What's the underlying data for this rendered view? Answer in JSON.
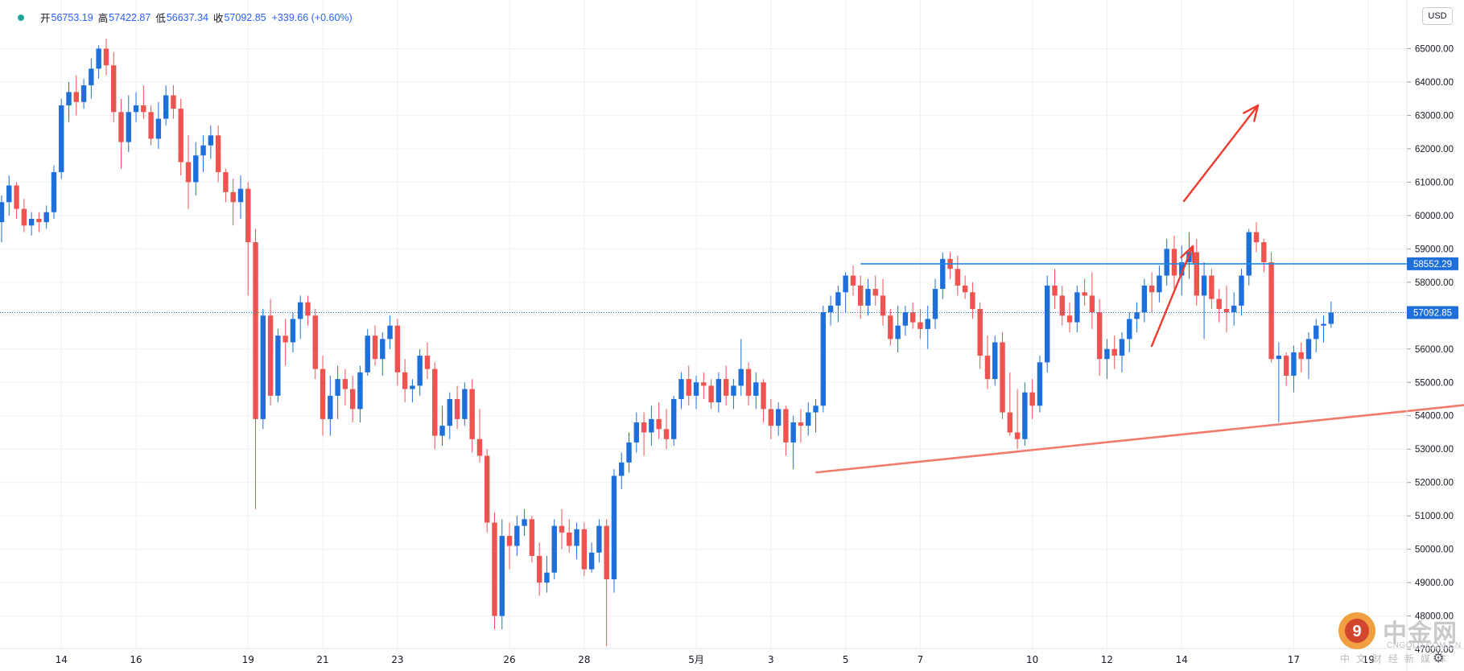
{
  "legend": {
    "open_label": "开",
    "open": "56753.19",
    "high_label": "高",
    "high": "57422.87",
    "low_label": "低",
    "low": "56637.34",
    "close_label": "收",
    "close": "57092.85",
    "change": "+339.66 (+0.60%)"
  },
  "currency": "USD",
  "price_tags": {
    "resistance": "58552.29",
    "last": "57092.85"
  },
  "watermark": {
    "name": "中金网",
    "url": "CNGOLD.COM.CN",
    "sub": "中文财经新媒体"
  },
  "colors": {
    "up": "#1e6fd9",
    "down": "#ef5350",
    "resistance_line": "#1e88e5",
    "support_line": "#f07a6c",
    "arrow": "#ef3b2e",
    "grid": "#eef0f3"
  },
  "chart_data": {
    "type": "candlestick",
    "title": "",
    "xlabel": "",
    "ylabel": "",
    "ylim": [
      46500,
      65500
    ],
    "y_ticks": [
      "65000.00",
      "64000.00",
      "63000.00",
      "62000.00",
      "61000.00",
      "60000.00",
      "59000.00",
      "58000.00",
      "57000.00",
      "56000.00",
      "55000.00",
      "54000.00",
      "53000.00",
      "52000.00",
      "51000.00",
      "50000.00",
      "49000.00",
      "48000.00",
      "47000.00"
    ],
    "x_ticks": [
      {
        "label": "14",
        "index": 8
      },
      {
        "label": "16",
        "index": 18
      },
      {
        "label": "19",
        "index": 33
      },
      {
        "label": "21",
        "index": 43
      },
      {
        "label": "23",
        "index": 53
      },
      {
        "label": "26",
        "index": 68
      },
      {
        "label": "28",
        "index": 78
      },
      {
        "label": "5月",
        "index": 93
      },
      {
        "label": "3",
        "index": 103
      },
      {
        "label": "5",
        "index": 113
      },
      {
        "label": "7",
        "index": 123
      },
      {
        "label": "10",
        "index": 138
      },
      {
        "label": "12",
        "index": 148
      },
      {
        "label": "14",
        "index": 158
      },
      {
        "label": "17",
        "index": 173
      },
      {
        "label": "19",
        "index": 183
      }
    ],
    "x_unit_note": "4-hour candles",
    "candles": [
      [
        59800,
        60600,
        59200,
        60400
      ],
      [
        60400,
        61200,
        60000,
        60900
      ],
      [
        60900,
        61000,
        59900,
        60200
      ],
      [
        60200,
        60500,
        59500,
        59700
      ],
      [
        59700,
        60100,
        59400,
        59900
      ],
      [
        59900,
        60100,
        59500,
        59800
      ],
      [
        59800,
        60300,
        59600,
        60100
      ],
      [
        60100,
        61500,
        59900,
        61300
      ],
      [
        61300,
        63500,
        61100,
        63300
      ],
      [
        63300,
        64000,
        62800,
        63700
      ],
      [
        63700,
        64200,
        63000,
        63400
      ],
      [
        63400,
        64100,
        63200,
        63900
      ],
      [
        63900,
        64700,
        63500,
        64400
      ],
      [
        64400,
        65100,
        64100,
        65000
      ],
      [
        65000,
        65300,
        64200,
        64500
      ],
      [
        64500,
        64900,
        62800,
        63100
      ],
      [
        63100,
        63500,
        61400,
        62200
      ],
      [
        62200,
        63600,
        61900,
        63100
      ],
      [
        63100,
        63700,
        62800,
        63300
      ],
      [
        63300,
        63900,
        62900,
        63100
      ],
      [
        63100,
        63300,
        62100,
        62300
      ],
      [
        62300,
        63400,
        62000,
        62900
      ],
      [
        62900,
        63900,
        62700,
        63600
      ],
      [
        63600,
        63900,
        62900,
        63200
      ],
      [
        63200,
        63500,
        61200,
        61600
      ],
      [
        61600,
        62400,
        60200,
        61000
      ],
      [
        61000,
        62200,
        60600,
        61800
      ],
      [
        61800,
        62400,
        61300,
        62100
      ],
      [
        62100,
        62700,
        61700,
        62400
      ],
      [
        62400,
        62700,
        61000,
        61300
      ],
      [
        61300,
        61400,
        60400,
        60700
      ],
      [
        60700,
        61100,
        59700,
        60400
      ],
      [
        60400,
        61200,
        59900,
        60800
      ],
      [
        60800,
        61000,
        57600,
        59200
      ],
      [
        59200,
        59600,
        51200,
        53900
      ],
      [
        53900,
        57200,
        53600,
        57000
      ],
      [
        57000,
        57500,
        54300,
        54600
      ],
      [
        54600,
        56600,
        54400,
        56400
      ],
      [
        56400,
        56900,
        55500,
        56200
      ],
      [
        56200,
        57100,
        55900,
        56900
      ],
      [
        56900,
        57600,
        56300,
        57400
      ],
      [
        57400,
        57600,
        56700,
        57000
      ],
      [
        57000,
        57200,
        55100,
        55400
      ],
      [
        55400,
        55800,
        53400,
        53900
      ],
      [
        53900,
        55200,
        53400,
        54600
      ],
      [
        54600,
        55500,
        53900,
        55100
      ],
      [
        55100,
        55400,
        54300,
        54800
      ],
      [
        54800,
        55200,
        53800,
        54200
      ],
      [
        54200,
        55500,
        53800,
        55300
      ],
      [
        55300,
        56600,
        55200,
        56400
      ],
      [
        56400,
        56700,
        55500,
        55700
      ],
      [
        55700,
        56500,
        55200,
        56300
      ],
      [
        56300,
        57000,
        56000,
        56700
      ],
      [
        56700,
        56900,
        54900,
        55300
      ],
      [
        55300,
        55700,
        54400,
        54800
      ],
      [
        54800,
        55100,
        54400,
        54900
      ],
      [
        54900,
        56000,
        54600,
        55800
      ],
      [
        55800,
        56200,
        55100,
        55400
      ],
      [
        55400,
        55600,
        53000,
        53400
      ],
      [
        53400,
        54300,
        53100,
        53700
      ],
      [
        53700,
        54700,
        53300,
        54500
      ],
      [
        54500,
        54900,
        53600,
        53900
      ],
      [
        53900,
        55000,
        53700,
        54800
      ],
      [
        54800,
        55100,
        52900,
        53300
      ],
      [
        53300,
        54200,
        52600,
        52800
      ],
      [
        52800,
        53000,
        50500,
        50800
      ],
      [
        50800,
        51100,
        47600,
        48000
      ],
      [
        48000,
        50900,
        47600,
        50400
      ],
      [
        50400,
        50800,
        49400,
        50100
      ],
      [
        50100,
        51000,
        49800,
        50700
      ],
      [
        50700,
        51200,
        50400,
        50900
      ],
      [
        50900,
        51000,
        49600,
        49800
      ],
      [
        49800,
        50200,
        48600,
        49000
      ],
      [
        49000,
        49800,
        48700,
        49300
      ],
      [
        49300,
        50900,
        49100,
        50700
      ],
      [
        50700,
        51200,
        50000,
        50500
      ],
      [
        50500,
        50900,
        49900,
        50100
      ],
      [
        50100,
        50800,
        49700,
        50600
      ],
      [
        50600,
        50800,
        49200,
        49400
      ],
      [
        49400,
        50200,
        49300,
        49900
      ],
      [
        49900,
        50900,
        49600,
        50700
      ],
      [
        50700,
        50900,
        47100,
        49100
      ],
      [
        49100,
        52400,
        48700,
        52200
      ],
      [
        52200,
        52900,
        51800,
        52600
      ],
      [
        52600,
        53500,
        52300,
        53200
      ],
      [
        53200,
        54100,
        52900,
        53800
      ],
      [
        53800,
        54100,
        52800,
        53500
      ],
      [
        53500,
        54300,
        53100,
        53900
      ],
      [
        53900,
        54400,
        53300,
        53600
      ],
      [
        53600,
        54200,
        53000,
        53300
      ],
      [
        53300,
        54600,
        53100,
        54500
      ],
      [
        54500,
        55300,
        54200,
        55100
      ],
      [
        55100,
        55500,
        54300,
        54600
      ],
      [
        54600,
        55200,
        54200,
        55000
      ],
      [
        55000,
        55300,
        54500,
        54900
      ],
      [
        54900,
        55100,
        54200,
        54400
      ],
      [
        54400,
        55300,
        54100,
        55100
      ],
      [
        55100,
        55500,
        54300,
        54600
      ],
      [
        54600,
        55100,
        54200,
        54900
      ],
      [
        54900,
        56300,
        54600,
        55400
      ],
      [
        55400,
        55600,
        54300,
        54600
      ],
      [
        54600,
        55300,
        54200,
        55000
      ],
      [
        55000,
        55100,
        53800,
        54200
      ],
      [
        54200,
        54500,
        53300,
        53700
      ],
      [
        53700,
        54400,
        53400,
        54200
      ],
      [
        54200,
        54300,
        52800,
        53200
      ],
      [
        53200,
        54000,
        52400,
        53800
      ],
      [
        53800,
        54200,
        53200,
        53700
      ],
      [
        53700,
        54400,
        53400,
        54100
      ],
      [
        54100,
        54500,
        53500,
        54300
      ],
      [
        54300,
        57300,
        54100,
        57100
      ],
      [
        57100,
        57600,
        56700,
        57300
      ],
      [
        57300,
        57900,
        56800,
        57700
      ],
      [
        57700,
        58300,
        57100,
        58200
      ],
      [
        58200,
        58500,
        57600,
        57900
      ],
      [
        57900,
        58200,
        56900,
        57300
      ],
      [
        57300,
        58100,
        57000,
        57800
      ],
      [
        57800,
        58200,
        57300,
        57600
      ],
      [
        57600,
        58100,
        56700,
        57000
      ],
      [
        57000,
        57200,
        56100,
        56300
      ],
      [
        56300,
        57300,
        55900,
        56700
      ],
      [
        56700,
        57300,
        56400,
        57100
      ],
      [
        57100,
        57400,
        56600,
        56800
      ],
      [
        56800,
        57200,
        56300,
        56600
      ],
      [
        56600,
        57300,
        56000,
        56900
      ],
      [
        56900,
        58100,
        56600,
        57800
      ],
      [
        57800,
        58900,
        57500,
        58700
      ],
      [
        58700,
        58900,
        58100,
        58400
      ],
      [
        58400,
        58800,
        57600,
        57900
      ],
      [
        57900,
        58200,
        57500,
        57700
      ],
      [
        57700,
        58000,
        56900,
        57200
      ],
      [
        57200,
        57400,
        55400,
        55800
      ],
      [
        55800,
        56400,
        54800,
        55100
      ],
      [
        55100,
        56400,
        54900,
        56200
      ],
      [
        56200,
        56500,
        53900,
        54100
      ],
      [
        54100,
        55300,
        53400,
        53500
      ],
      [
        53500,
        54800,
        53000,
        53300
      ],
      [
        53300,
        55000,
        53100,
        54700
      ],
      [
        54700,
        55100,
        53900,
        54300
      ],
      [
        54300,
        55800,
        54100,
        55600
      ],
      [
        55600,
        58200,
        55300,
        57900
      ],
      [
        57900,
        58400,
        57200,
        57600
      ],
      [
        57600,
        57900,
        56700,
        57000
      ],
      [
        57000,
        57400,
        56500,
        56800
      ],
      [
        56800,
        57900,
        56500,
        57700
      ],
      [
        57700,
        58100,
        57300,
        57600
      ],
      [
        57600,
        58300,
        56600,
        57100
      ],
      [
        57100,
        57500,
        55200,
        55700
      ],
      [
        55700,
        56300,
        55100,
        56000
      ],
      [
        56000,
        56400,
        55400,
        55800
      ],
      [
        55800,
        56500,
        55300,
        56300
      ],
      [
        56300,
        57100,
        55900,
        56900
      ],
      [
        56900,
        57400,
        56500,
        57100
      ],
      [
        57100,
        58100,
        56800,
        57900
      ],
      [
        57900,
        58300,
        57100,
        57700
      ],
      [
        57700,
        58500,
        57400,
        58200
      ],
      [
        58200,
        59300,
        57900,
        59000
      ],
      [
        59000,
        59400,
        57800,
        58200
      ],
      [
        58200,
        59100,
        57600,
        58600
      ],
      [
        58600,
        59500,
        58100,
        58900
      ],
      [
        58900,
        59300,
        57300,
        57600
      ],
      [
        57600,
        58600,
        56300,
        58200
      ],
      [
        58200,
        58400,
        57200,
        57500
      ],
      [
        57500,
        57800,
        56800,
        57200
      ],
      [
        57200,
        57900,
        56500,
        57100
      ],
      [
        57100,
        57700,
        56700,
        57300
      ],
      [
        57300,
        58400,
        57000,
        58200
      ],
      [
        58200,
        59600,
        57900,
        59500
      ],
      [
        59500,
        59800,
        58900,
        59200
      ],
      [
        59200,
        59300,
        58300,
        58600
      ],
      [
        58600,
        58900,
        55600,
        55700
      ],
      [
        55700,
        56200,
        53800,
        55800
      ],
      [
        55800,
        55900,
        54900,
        55200
      ],
      [
        55200,
        56100,
        54700,
        55900
      ],
      [
        55900,
        56200,
        55300,
        55700
      ],
      [
        55700,
        56500,
        55100,
        56300
      ],
      [
        56300,
        56900,
        55900,
        56700
      ],
      [
        56700,
        57000,
        56200,
        56753
      ],
      [
        56753,
        57423,
        56637,
        57093
      ]
    ],
    "series": [
      {
        "name": "",
        "kind": "horizontal",
        "value": 58552.29,
        "from_index": 115
      },
      {
        "name": "",
        "kind": "trendline",
        "points": [
          [
            109,
            52300
          ],
          [
            208,
            54600
          ]
        ]
      }
    ]
  }
}
